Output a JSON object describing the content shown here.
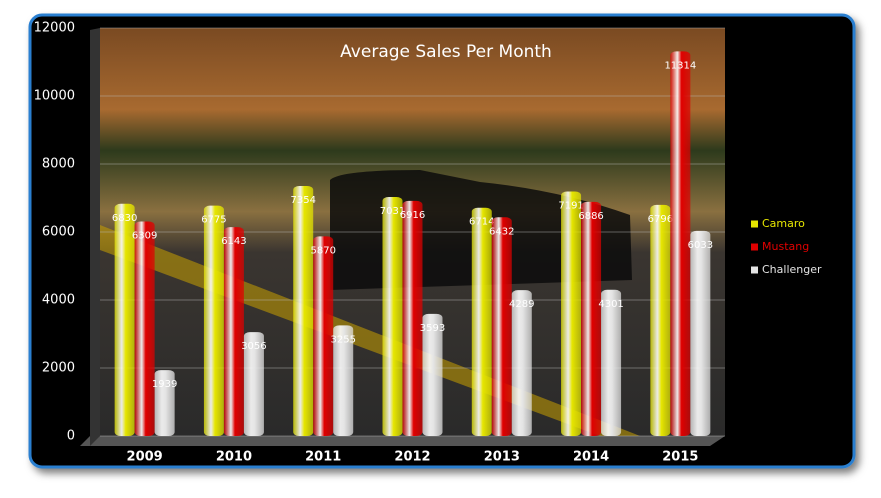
{
  "chart_data": {
    "type": "bar",
    "title": "Average Sales Per Month",
    "categories": [
      "2009",
      "2010",
      "2011",
      "2012",
      "2013",
      "2014",
      "2015"
    ],
    "series": [
      {
        "name": "Camaro",
        "color": "#e6e600",
        "values": [
          6830,
          6775,
          7354,
          7031,
          6714,
          7191,
          6796
        ]
      },
      {
        "name": "Mustang",
        "color": "#e00000",
        "values": [
          6309,
          6143,
          5870,
          6916,
          6432,
          6886,
          11314
        ]
      },
      {
        "name": "Challenger",
        "color": "#e4e4e4",
        "values": [
          1939,
          3056,
          3255,
          3593,
          4289,
          4301,
          6033
        ]
      }
    ],
    "ylim": [
      0,
      12000
    ],
    "yticks": [
      0,
      2000,
      4000,
      6000,
      8000,
      10000,
      12000
    ],
    "grid": true,
    "legend": "right"
  }
}
